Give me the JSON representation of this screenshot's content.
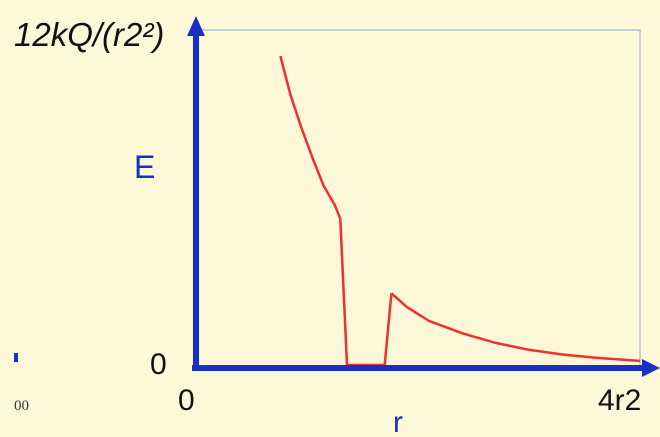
{
  "chart_data": {
    "type": "line",
    "ylabel": "E",
    "xlabel": "r",
    "y_top_label": "12kQ/(r2²)",
    "y_tick_zero": "0",
    "x_ticks": [
      "0",
      "4r2"
    ],
    "edge_text": "00",
    "xlim": [
      0,
      4
    ],
    "ylim": [
      0,
      12
    ],
    "series": [
      {
        "segment": "inner-decay",
        "points": [
          [
            0.76,
            11.2
          ],
          [
            0.85,
            9.8
          ],
          [
            0.95,
            8.6
          ],
          [
            1.05,
            7.5
          ],
          [
            1.15,
            6.5
          ],
          [
            1.25,
            5.8
          ],
          [
            1.3,
            5.3
          ]
        ]
      },
      {
        "segment": "drop-to-zero",
        "points": [
          [
            1.3,
            5.3
          ],
          [
            1.36,
            0
          ]
        ]
      },
      {
        "segment": "zero-gap",
        "points": [
          [
            1.36,
            0
          ],
          [
            1.7,
            0
          ]
        ]
      },
      {
        "segment": "outer-rise",
        "points": [
          [
            1.7,
            0
          ],
          [
            1.76,
            2.6
          ]
        ]
      },
      {
        "segment": "outer-decay",
        "points": [
          [
            1.76,
            2.6
          ],
          [
            1.9,
            2.1
          ],
          [
            2.1,
            1.6
          ],
          [
            2.4,
            1.15
          ],
          [
            2.7,
            0.8
          ],
          [
            3.0,
            0.55
          ],
          [
            3.3,
            0.38
          ],
          [
            3.6,
            0.26
          ],
          [
            4.0,
            0.15
          ]
        ]
      }
    ],
    "colors": {
      "curve": "#f03030",
      "axis": "#1a2fc8",
      "frame": "#c8cfd6",
      "label": "#1a2fc8"
    }
  }
}
